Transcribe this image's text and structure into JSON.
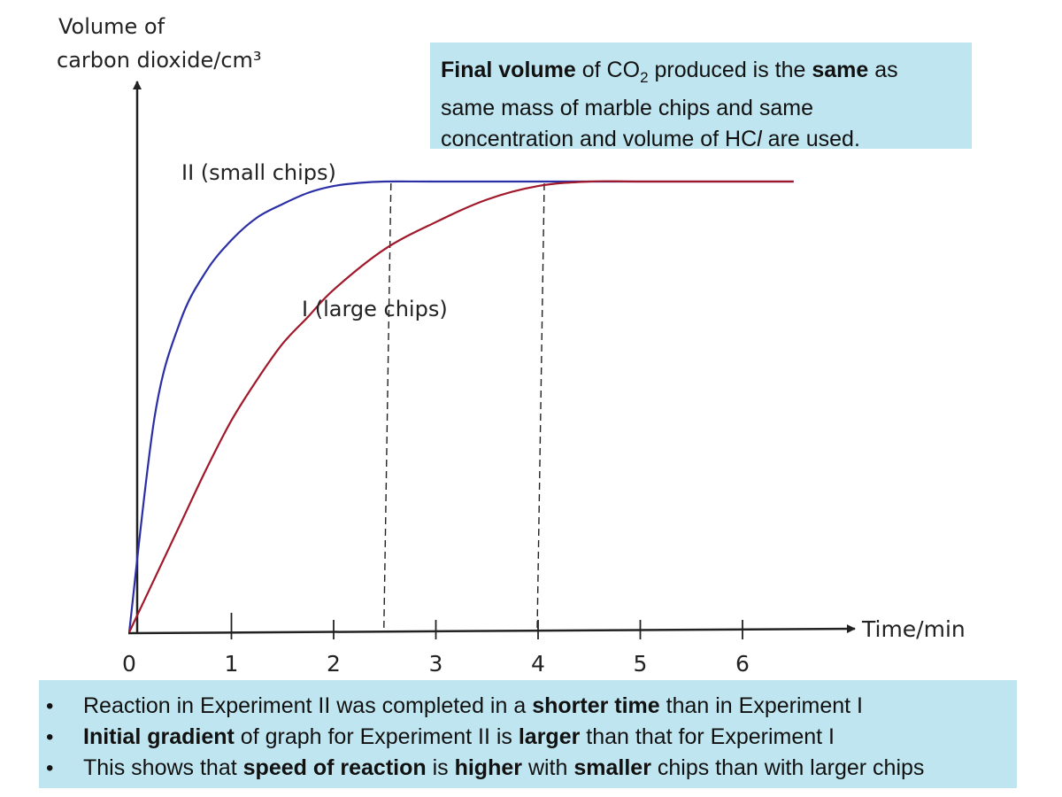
{
  "chart_data": {
    "type": "line",
    "ylabel_line1": "Volume of",
    "ylabel_line2": "carbon dioxide/cm³",
    "xlabel": "Time/min",
    "x_ticks": [
      "0",
      "1",
      "2",
      "3",
      "4",
      "5",
      "6"
    ],
    "xlim": [
      0,
      8.2
    ],
    "ylim": [
      0,
      1
    ],
    "series": [
      {
        "name": "II (small chips)",
        "color": "#2b2fa6",
        "x": [
          0,
          0.25,
          0.5,
          0.75,
          1.0,
          1.25,
          1.5,
          1.75,
          2.0,
          2.25,
          2.5,
          3.0,
          4.0,
          5.0,
          6.0,
          6.5
        ],
        "y": [
          0,
          0.48,
          0.69,
          0.8,
          0.87,
          0.92,
          0.95,
          0.975,
          0.99,
          0.997,
          1.0,
          1.0,
          1.0,
          1.0,
          1.0,
          1.0
        ]
      },
      {
        "name": "I (large chips)",
        "color": "#a0182a",
        "x": [
          0,
          0.25,
          0.5,
          0.75,
          1.0,
          1.25,
          1.5,
          1.75,
          2.0,
          2.5,
          3.0,
          3.5,
          4.0,
          4.5,
          5.0,
          6.0,
          6.5
        ],
        "y": [
          0,
          0.12,
          0.24,
          0.36,
          0.47,
          0.56,
          0.64,
          0.7,
          0.76,
          0.85,
          0.91,
          0.96,
          0.99,
          1.0,
          1.0,
          1.0,
          1.0
        ]
      }
    ],
    "reference_lines_x": [
      2.5,
      4.0
    ]
  },
  "callout": {
    "p1": "Final volume",
    "p2": " of CO",
    "p3": "2",
    "p4": " produced is the ",
    "p5": "same",
    "p6": " as",
    "line2": "same mass of marble chips and same",
    "line3a": "concentration and volume of HC",
    "line3b": "l",
    "line3c": " are used."
  },
  "bullets": {
    "b1": {
      "t1": "Reaction in Experiment II was completed in a ",
      "t2": "shorter time",
      "t3": " than in Experiment I"
    },
    "b2": {
      "t1": "Initial gradient",
      "t2": " of graph for Experiment II is ",
      "t3": "larger",
      "t4": " than that for Experiment I"
    },
    "b3": {
      "t1": "This shows that ",
      "t2": "speed of reaction",
      "t3": " is ",
      "t4": "higher",
      "t5": " with ",
      "t6": "smaller",
      "t7": " chips than with larger chips"
    }
  }
}
